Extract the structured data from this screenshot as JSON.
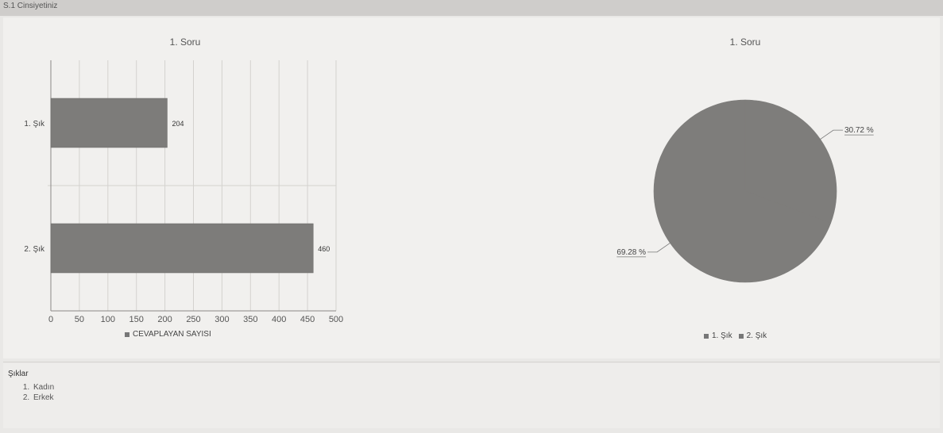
{
  "header": {
    "title": "S.1 Cinsiyetiniz"
  },
  "chart_data": [
    {
      "type": "bar",
      "orientation": "horizontal",
      "title": "1. Soru",
      "categories": [
        "1. Şık",
        "2. Şık"
      ],
      "series": [
        {
          "name": "CEVAPLAYAN SAYISI",
          "values": [
            204,
            460
          ]
        }
      ],
      "xlim": [
        0,
        500
      ],
      "xticks": [
        0,
        50,
        100,
        150,
        200,
        250,
        300,
        350,
        400,
        450,
        500
      ],
      "grid": true,
      "legend": "bottom",
      "colors": {
        "bar": "#7d7c7a",
        "grid": "#d4d2cf",
        "axis": "#8a8886"
      }
    },
    {
      "type": "pie",
      "title": "1. Soru",
      "slices": [
        {
          "label": "1. Şık",
          "value": 30.72,
          "text": "30.72 %"
        },
        {
          "label": "2. Şık",
          "value": 69.28,
          "text": "69.28 %"
        }
      ],
      "legend": "bottom",
      "colors": {
        "slice": "#7e7d7b"
      }
    }
  ],
  "options": {
    "title": "Şıklar",
    "items": [
      "Kadın",
      "Erkek"
    ]
  }
}
